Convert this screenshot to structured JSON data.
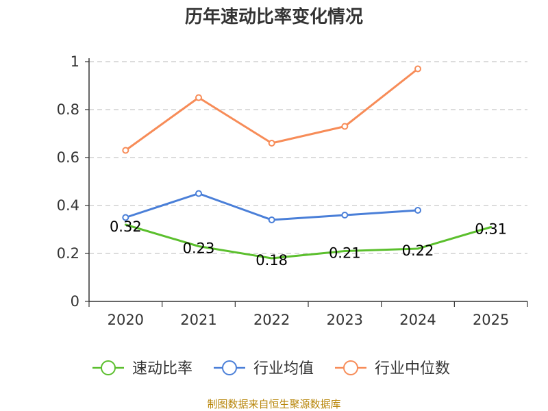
{
  "chart_data": {
    "type": "line",
    "title": "历年速动比率变化情况",
    "categories": [
      "2020",
      "2021",
      "2022",
      "2023",
      "2024",
      "2025"
    ],
    "y_ticks": [
      "0",
      "0.2",
      "0.4",
      "0.6",
      "0.8",
      "1"
    ],
    "ylim": [
      0,
      1
    ],
    "grid": true,
    "legend_position": "bottom",
    "series": [
      {
        "name": "速动比率",
        "color": "#5bbf2d",
        "values": [
          0.32,
          0.23,
          0.18,
          0.21,
          0.22,
          0.31
        ],
        "labels": [
          "0.32",
          "0.23",
          "0.18",
          "0.21",
          "0.22",
          "0.31"
        ],
        "show_markers": false,
        "show_labels": true
      },
      {
        "name": "行业均值",
        "color": "#4a7fd8",
        "values": [
          0.35,
          0.45,
          0.34,
          0.36,
          0.38,
          null
        ],
        "show_markers": true,
        "show_labels": false
      },
      {
        "name": "行业中位数",
        "color": "#f78c58",
        "values": [
          0.63,
          0.85,
          0.66,
          0.73,
          0.97,
          null
        ],
        "show_markers": true,
        "show_labels": false
      }
    ]
  },
  "source": {
    "text": "制图数据来自恒生聚源数据库",
    "color": "#b8860b"
  }
}
